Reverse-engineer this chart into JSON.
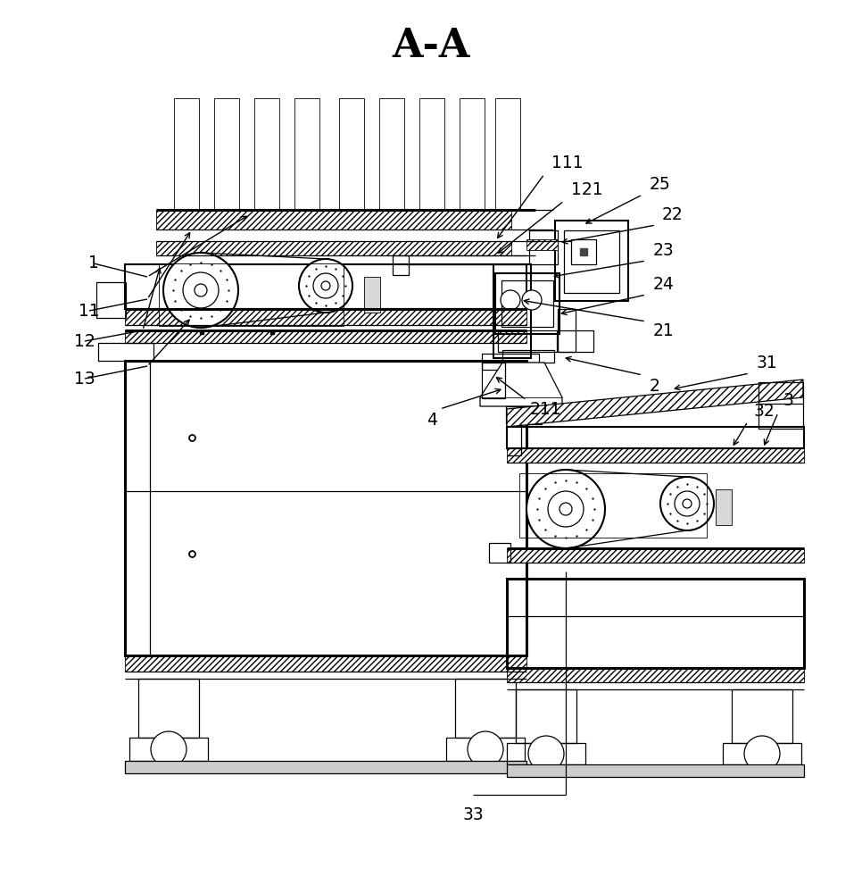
{
  "title": "A-A",
  "bg_color": "#ffffff",
  "line_color": "#000000",
  "lw_thick": 2.2,
  "lw_med": 1.5,
  "lw_thin": 0.9,
  "lw_vthin": 0.6,
  "title_fs": 32,
  "label_fs": 13.5
}
